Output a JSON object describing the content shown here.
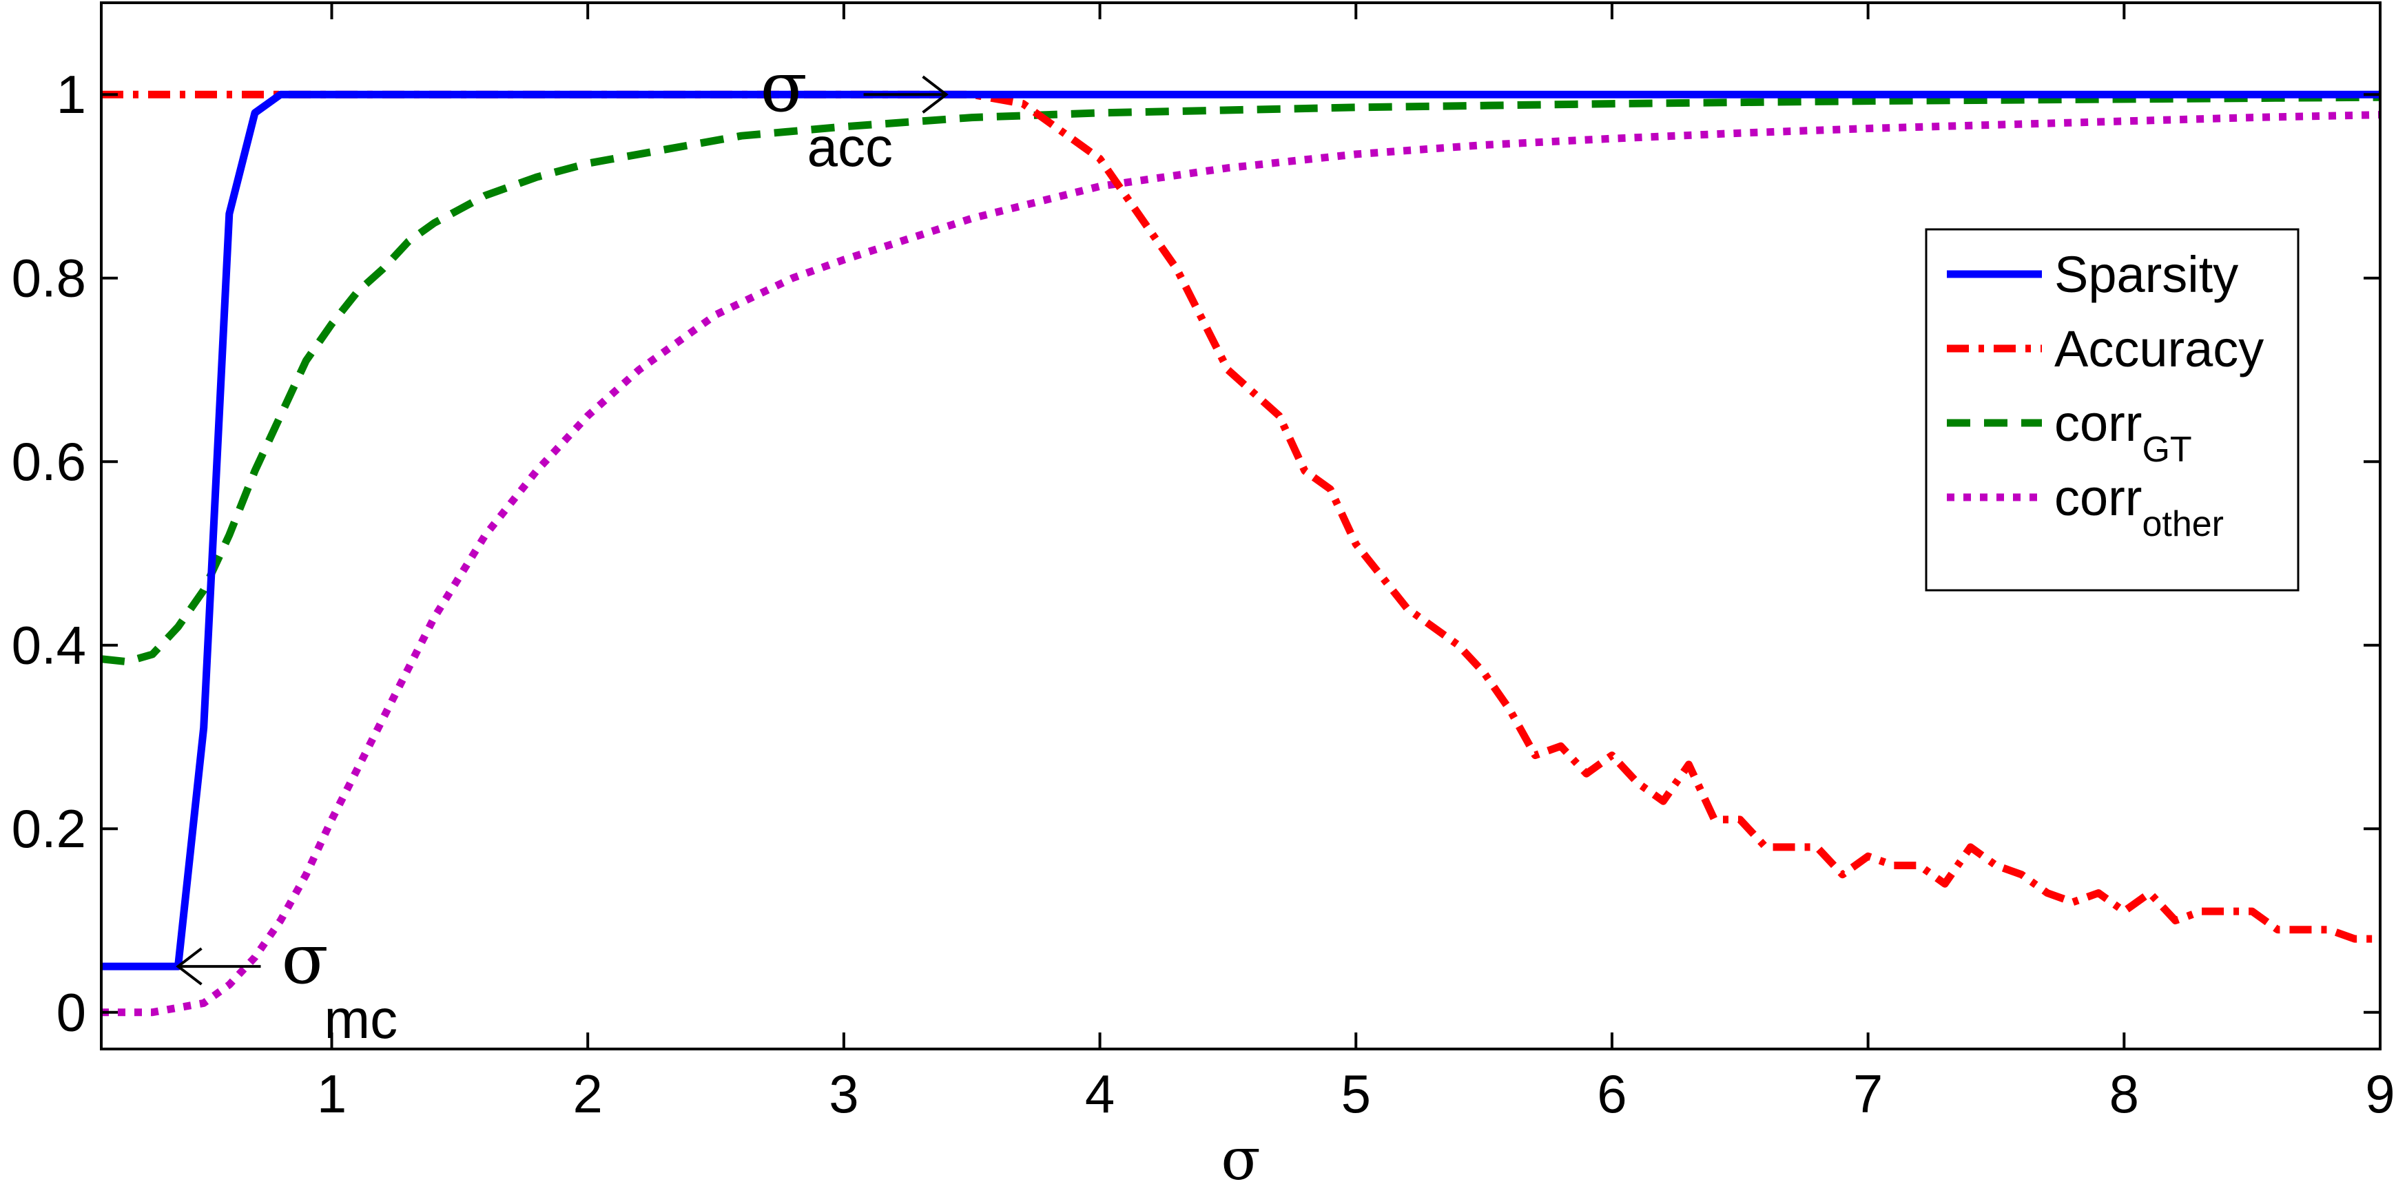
{
  "chart_data": {
    "type": "line",
    "xlabel": "σ",
    "xlim": [
      0.1,
      9
    ],
    "ylim": [
      -0.04,
      1.1
    ],
    "xticks": [
      1,
      2,
      3,
      4,
      5,
      6,
      7,
      8,
      9
    ],
    "yticks": [
      0,
      0.2,
      0.4,
      0.6,
      0.8,
      1
    ],
    "ytick_labels": [
      "0",
      "0.2",
      "0.4",
      "0.6",
      "0.8",
      "1"
    ],
    "xtick_labels": [
      "1",
      "2",
      "3",
      "4",
      "5",
      "6",
      "7",
      "8",
      "9"
    ],
    "grid": false,
    "legend_position": "right",
    "series": [
      {
        "name": "Sparsity",
        "subscript": "",
        "color": "#0000ff",
        "dash": "solid",
        "x": [
          0.1,
          0.2,
          0.3,
          0.4,
          0.5,
          0.6,
          0.7,
          0.8,
          0.9,
          1.0,
          1.5,
          2,
          3,
          4,
          5,
          6,
          7,
          8,
          9
        ],
        "y": [
          0.05,
          0.05,
          0.05,
          0.05,
          0.31,
          0.87,
          0.98,
          1.0,
          1.0,
          1.0,
          1.0,
          1.0,
          1.0,
          1.0,
          1.0,
          1.0,
          1.0,
          1.0,
          1.0
        ]
      },
      {
        "name": "Accuracy",
        "subscript": "",
        "color": "#ff0000",
        "dash": "dashdot",
        "x": [
          0.1,
          0.5,
          1,
          2,
          3,
          3.5,
          3.7,
          3.8,
          4.0,
          4.1,
          4.3,
          4.5,
          4.7,
          4.8,
          4.9,
          5.0,
          5.2,
          5.4,
          5.5,
          5.6,
          5.7,
          5.8,
          5.9,
          6.0,
          6.1,
          6.2,
          6.3,
          6.4,
          6.5,
          6.6,
          6.7,
          6.8,
          6.9,
          7.0,
          7.1,
          7.2,
          7.3,
          7.4,
          7.5,
          7.6,
          7.7,
          7.8,
          7.9,
          8.0,
          8.1,
          8.2,
          8.3,
          8.4,
          8.5,
          8.6,
          8.7,
          8.8,
          8.9,
          9.0
        ],
        "y": [
          1,
          1,
          1,
          1,
          1,
          1,
          0.99,
          0.97,
          0.93,
          0.89,
          0.81,
          0.7,
          0.65,
          0.59,
          0.57,
          0.51,
          0.44,
          0.4,
          0.37,
          0.33,
          0.28,
          0.29,
          0.26,
          0.28,
          0.25,
          0.23,
          0.27,
          0.21,
          0.21,
          0.18,
          0.18,
          0.18,
          0.15,
          0.17,
          0.16,
          0.16,
          0.14,
          0.18,
          0.16,
          0.15,
          0.13,
          0.12,
          0.13,
          0.11,
          0.13,
          0.1,
          0.11,
          0.11,
          0.11,
          0.09,
          0.09,
          0.09,
          0.08,
          0.08
        ]
      },
      {
        "name": "corr",
        "subscript": "GT",
        "color": "#008000",
        "dash": "dashed",
        "x": [
          0.1,
          0.2,
          0.3,
          0.4,
          0.5,
          0.6,
          0.7,
          0.8,
          0.9,
          1.0,
          1.1,
          1.2,
          1.3,
          1.4,
          1.5,
          1.6,
          1.8,
          2.0,
          2.3,
          2.6,
          3.0,
          3.5,
          4.0,
          5.0,
          6.0,
          7.0,
          8.0,
          9.0
        ],
        "y": [
          0.385,
          0.382,
          0.39,
          0.42,
          0.46,
          0.52,
          0.59,
          0.65,
          0.71,
          0.75,
          0.785,
          0.81,
          0.84,
          0.86,
          0.875,
          0.89,
          0.91,
          0.925,
          0.94,
          0.955,
          0.965,
          0.975,
          0.98,
          0.986,
          0.99,
          0.993,
          0.995,
          0.997
        ]
      },
      {
        "name": "corr",
        "subscript": "other",
        "color": "#bf00bf",
        "dash": "dotted",
        "x": [
          0.1,
          0.3,
          0.5,
          0.6,
          0.7,
          0.8,
          0.9,
          1.0,
          1.2,
          1.4,
          1.6,
          1.8,
          2.0,
          2.2,
          2.5,
          2.8,
          3.0,
          3.5,
          4.0,
          4.5,
          5.0,
          5.5,
          6.0,
          6.5,
          7.0,
          7.5,
          8.0,
          8.5,
          9.0
        ],
        "y": [
          0.0,
          0.0,
          0.01,
          0.03,
          0.06,
          0.1,
          0.15,
          0.21,
          0.32,
          0.43,
          0.52,
          0.59,
          0.65,
          0.7,
          0.76,
          0.8,
          0.82,
          0.865,
          0.9,
          0.92,
          0.935,
          0.945,
          0.952,
          0.958,
          0.963,
          0.967,
          0.971,
          0.975,
          0.978
        ]
      }
    ],
    "annotations": [
      {
        "id": "sigma-acc",
        "symbol": "σ",
        "subscript": "acc",
        "arrow_direction": "right",
        "point_x": 3.4,
        "point_y": 1.0
      },
      {
        "id": "sigma-mc",
        "symbol": "σ",
        "subscript": "mc",
        "arrow_direction": "left",
        "point_x": 0.4,
        "point_y": 0.05
      }
    ]
  }
}
